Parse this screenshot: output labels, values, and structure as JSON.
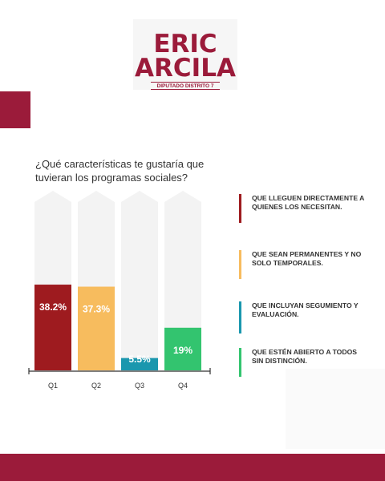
{
  "colors": {
    "brand": "#9b1b3a",
    "placeholder": "#f3f3f3",
    "axis": "#333333",
    "label_light": "#ffffff",
    "label_dark": "#333333"
  },
  "logo": {
    "line1": "ERIC",
    "line2": "ARCILA",
    "subtitle": "DIPUTADO DISTRITO 7"
  },
  "question": "¿Qué características te gustaría que tuvieran los programas sociales?",
  "legend": [
    {
      "label": "QUE LLEGUEN DIRECTAMENTE A QUIENES LOS NECESITAN.",
      "color": "#9e1b1f"
    },
    {
      "label": "QUE SEAN PERMANENTES Y NO SOLO TEMPORALES.",
      "color": "#f7bc5e"
    },
    {
      "label": "QUE INCLUYAN SEGUMIENTO Y EVALUACIÓN.",
      "color": "#1a97ae"
    },
    {
      "label": "QUE ESTÉN ABIERTO A TODOS SIN DISTINCIÓN.",
      "color": "#33c46f"
    }
  ],
  "chart_data": {
    "type": "bar",
    "categories": [
      "Q1",
      "Q2",
      "Q3",
      "Q4"
    ],
    "values": [
      38.2,
      37.3,
      5.5,
      19
    ],
    "value_labels": [
      "38.2%",
      "37.3%",
      "5.5%",
      "19%"
    ],
    "colors": [
      "#9e1b1f",
      "#f7bc5e",
      "#1a97ae",
      "#33c46f"
    ],
    "ylim": [
      0,
      80
    ],
    "grid": false,
    "legend_position": "right"
  }
}
